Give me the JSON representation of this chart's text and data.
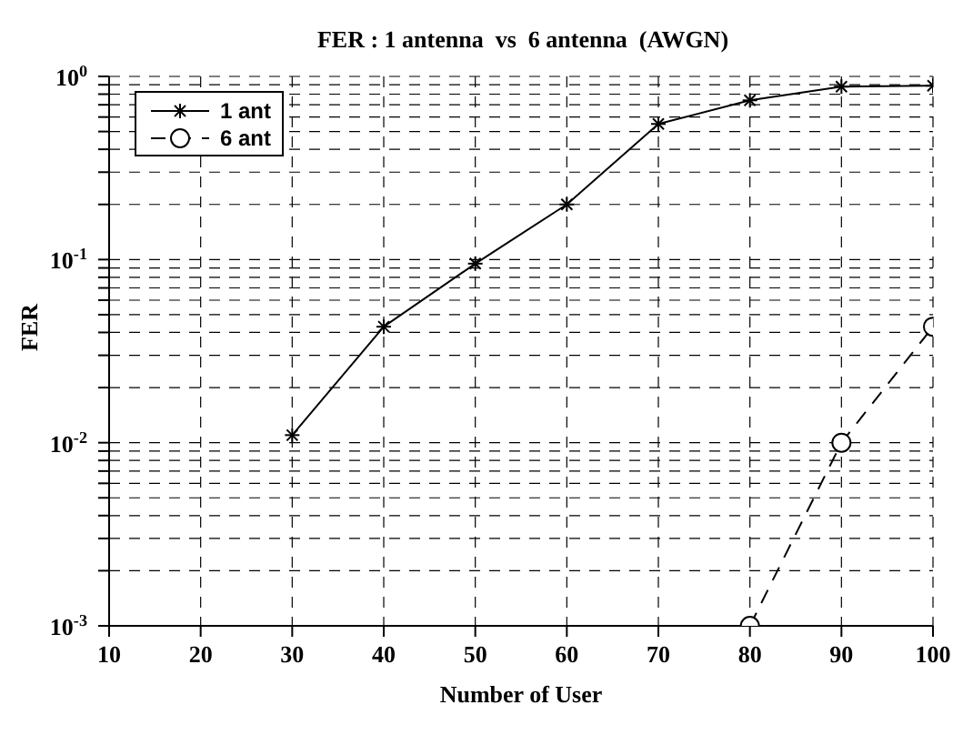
{
  "chart_data": {
    "type": "line",
    "title": "FER : 1 antenna  vs  6 antenna  (AWGN)",
    "xlabel": "Number of User",
    "ylabel": "FER",
    "log": "y",
    "grid": true,
    "legend": "top left",
    "xlim": [
      10,
      100
    ],
    "xticks": [
      10,
      20,
      30,
      40,
      50,
      60,
      70,
      80,
      90,
      100
    ],
    "ylim": [
      0.001,
      1
    ],
    "yticks": [
      {
        "value": 0.001,
        "label": "10$^{-3}$"
      },
      {
        "value": 0.002,
        "label": null
      },
      {
        "value": 0.003,
        "label": null
      },
      {
        "value": 0.004,
        "label": null
      },
      {
        "value": 0.005,
        "label": null
      },
      {
        "value": 0.006,
        "label": null
      },
      {
        "value": 0.007,
        "label": null
      },
      {
        "value": 0.008,
        "label": null
      },
      {
        "value": 0.009,
        "label": null
      },
      {
        "value": 0.01,
        "label": "10$^{-2}$"
      },
      {
        "value": 0.02,
        "label": null
      },
      {
        "value": 0.03,
        "label": null
      },
      {
        "value": 0.04,
        "label": null
      },
      {
        "value": 0.05,
        "label": null
      },
      {
        "value": 0.06,
        "label": null
      },
      {
        "value": 0.07,
        "label": null
      },
      {
        "value": 0.08,
        "label": null
      },
      {
        "value": 0.09,
        "label": null
      },
      {
        "value": 0.1,
        "label": "10$^{-1}$"
      },
      {
        "value": 0.2,
        "label": null
      },
      {
        "value": 0.3,
        "label": null
      },
      {
        "value": 0.4,
        "label": null
      },
      {
        "value": 0.5,
        "label": null
      },
      {
        "value": 0.6,
        "label": null
      },
      {
        "value": 0.7,
        "label": null
      },
      {
        "value": 0.8,
        "label": null
      },
      {
        "value": 0.9,
        "label": null
      },
      {
        "value": 1,
        "label": "10$^{0}$"
      }
    ],
    "series": [
      {
        "name": "1 ant",
        "color": "#000000",
        "marker": "cross",
        "line_style": "solid",
        "x": [
          30,
          40,
          50,
          60,
          70,
          80,
          90,
          100
        ],
        "values": [
          0.011,
          0.043,
          0.095,
          0.2,
          0.55,
          0.74,
          0.88,
          0.89
        ]
      },
      {
        "name": "6 ant",
        "color": "#000000",
        "marker": "circle",
        "line_style": "dashed",
        "x": [
          80,
          90,
          100
        ],
        "values": [
          0.001,
          0.01,
          0.043
        ]
      }
    ]
  }
}
